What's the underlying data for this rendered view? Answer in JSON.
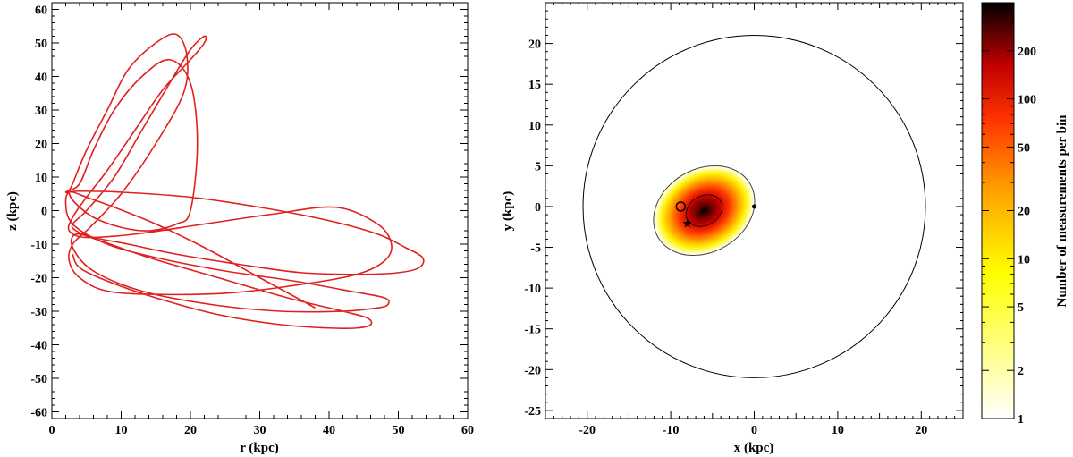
{
  "chart_data": [
    {
      "type": "line",
      "xlabel": "r (kpc)",
      "ylabel": "z (kpc)",
      "xlim": [
        0,
        60
      ],
      "ylim": [
        -62,
        62
      ],
      "xticks": [
        0,
        10,
        20,
        30,
        40,
        50,
        60
      ],
      "yticks": [
        -60,
        -50,
        -40,
        -30,
        -20,
        -10,
        0,
        10,
        20,
        30,
        40,
        50,
        60
      ],
      "series": [
        {
          "color": "#e02020",
          "x": [
            38,
            30,
            22,
            15,
            9,
            5,
            3,
            2.5,
            3.5,
            6,
            10,
            14,
            18,
            20,
            21,
            20,
            17,
            13,
            9,
            6,
            4,
            2,
            4,
            10,
            20,
            30,
            40,
            47,
            51,
            53.5,
            53,
            50,
            44,
            36,
            27,
            18,
            11,
            6,
            3.5,
            3,
            5,
            9,
            13,
            17,
            20,
            22,
            22,
            20,
            16,
            12,
            8,
            5,
            3,
            2.5,
            5,
            12,
            22,
            32,
            41,
            47,
            49,
            48,
            44,
            36,
            26,
            16,
            8,
            4,
            2.5,
            3,
            5.5,
            10,
            15,
            19,
            19.5,
            18,
            15,
            11,
            8,
            5,
            3,
            2,
            3,
            8,
            15,
            25,
            35,
            43,
            48,
            48.5,
            47,
            42,
            33,
            23,
            13,
            6,
            3,
            3.5,
            7,
            14,
            24,
            34,
            42,
            45.5,
            46,
            44,
            40,
            33,
            24,
            15,
            8,
            4,
            3
          ],
          "y": [
            -29,
            -20,
            -11,
            -4,
            1,
            4,
            5.5,
            5,
            2,
            -2,
            -5,
            -6,
            -4,
            0,
            20,
            38,
            45,
            40,
            30,
            18,
            8,
            5.5,
            5.8,
            5.5,
            4,
            1,
            -3,
            -7,
            -11,
            -14,
            -17,
            -18.5,
            -19,
            -18.5,
            -16,
            -13,
            -10,
            -8,
            -6,
            -4,
            0,
            10,
            24,
            38,
            48,
            52,
            50,
            45,
            36,
            24,
            12,
            4,
            -2,
            -6,
            -8,
            -7,
            -4,
            -1,
            1,
            -4,
            -10,
            -15,
            -19,
            -22,
            -24.5,
            -25,
            -24,
            -20,
            -15,
            -10,
            -5,
            5,
            20,
            35,
            46,
            52.5,
            50,
            42,
            30,
            18,
            8,
            3,
            -4,
            -10,
            -14,
            -18,
            -21,
            -24,
            -26,
            -28,
            -29,
            -30,
            -30,
            -28,
            -24,
            -18,
            -11,
            -7,
            -9,
            -14,
            -20,
            -26,
            -30,
            -32,
            -34,
            -35,
            -35,
            -34,
            -31,
            -26,
            -21,
            -17,
            -13
          ]
        }
      ]
    },
    {
      "type": "heatmap",
      "xlabel": "x (kpc)",
      "ylabel": "y (kpc)",
      "xlim": [
        -25,
        25
      ],
      "ylim": [
        -26,
        25
      ],
      "xticks": [
        -20,
        -10,
        0,
        10,
        20
      ],
      "yticks": [
        -25,
        -20,
        -15,
        -10,
        -5,
        0,
        5,
        10,
        15,
        20
      ],
      "colorbar": {
        "label": "Number of measurements per bin",
        "scale": "log",
        "range": [
          1,
          400
        ],
        "ticks": [
          1,
          2,
          5,
          10,
          20,
          50,
          100,
          200
        ],
        "colors": [
          "#ffffff",
          "#ffff99",
          "#ffff00",
          "#ffaa00",
          "#ff4400",
          "#cc0000",
          "#660000",
          "#000000"
        ]
      },
      "density_cloud": {
        "center": [
          -6,
          -0.5
        ],
        "peak": 400,
        "sigma_x": 1.9,
        "sigma_y": 1.5,
        "rotation_deg": 30,
        "extent_rx": 6.5,
        "extent_ry": 5.2
      },
      "outer_circle_radius": 20.5,
      "markers": {
        "open_circle": [
          -8.8,
          0
        ],
        "star": [
          -8,
          -2.2
        ],
        "dot": [
          0,
          0
        ]
      }
    }
  ]
}
